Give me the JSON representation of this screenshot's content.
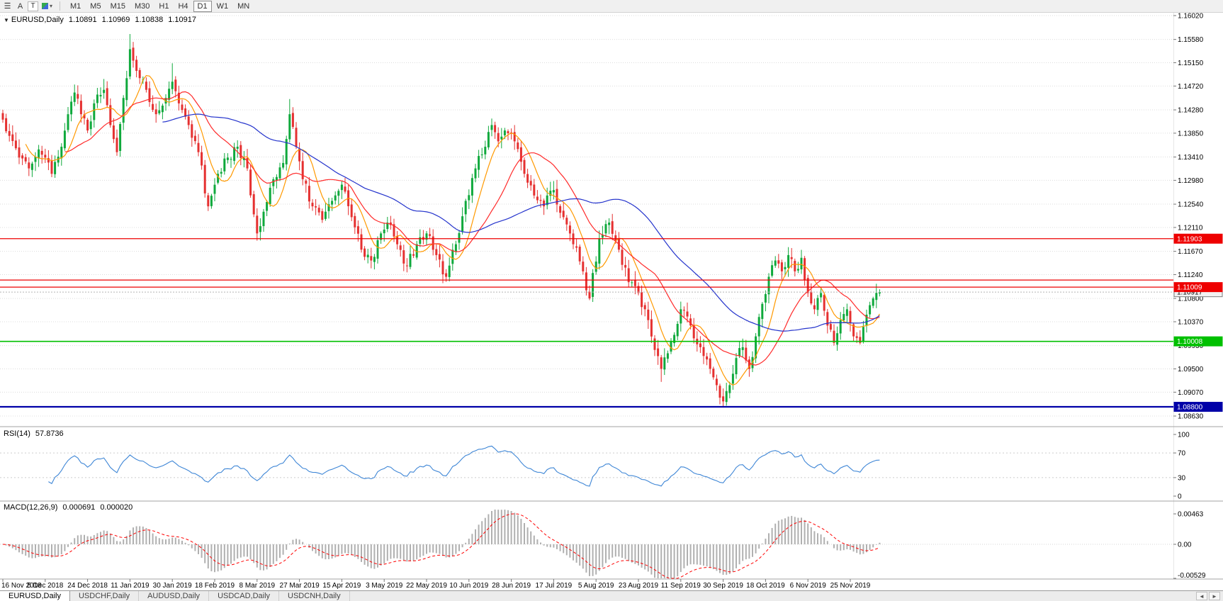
{
  "toolbar": {
    "tools": [
      {
        "name": "charts-list-icon",
        "glyph": "☰"
      },
      {
        "name": "arrow-tool-button",
        "glyph": "A"
      },
      {
        "name": "text-tool-button",
        "glyph": "T"
      },
      {
        "name": "indicators-button",
        "glyph": ""
      },
      {
        "name": "chevron-down-icon",
        "glyph": "▾"
      }
    ],
    "timeframes": [
      "M1",
      "M5",
      "M15",
      "M30",
      "H1",
      "H4",
      "D1",
      "W1",
      "MN"
    ],
    "active_timeframe": "D1"
  },
  "chart": {
    "symbol_label": "EURUSD,Daily",
    "collapse_icon": "▼",
    "ohlc": {
      "open": "1.10891",
      "high": "1.10969",
      "low": "1.10838",
      "close": "1.10917"
    },
    "price_axis_labels": [
      "1.16020",
      "1.15580",
      "1.15150",
      "1.14720",
      "1.14280",
      "1.13850",
      "1.13410",
      "1.12980",
      "1.12540",
      "1.12110",
      "1.11670",
      "1.11240",
      "1.10800",
      "1.10370",
      "1.09930",
      "1.09500",
      "1.09070",
      "1.08630"
    ],
    "date_axis_labels": [
      "16 Nov 2018",
      "5 Dec 2018",
      "24 Dec 2018",
      "11 Jan 2019",
      "30 Jan 2019",
      "18 Feb 2019",
      "8 Mar 2019",
      "27 Mar 2019",
      "15 Apr 2019",
      "3 May 2019",
      "22 May 2019",
      "10 Jun 2019",
      "28 Jun 2019",
      "17 Jul 2019",
      "5 Aug 2019",
      "23 Aug 2019",
      "11 Sep 2019",
      "30 Sep 2019",
      "18 Oct 2019",
      "6 Nov 2019",
      "25 Nov 2019"
    ]
  },
  "rsi": {
    "name": "RSI(14)",
    "value": "57.8736",
    "levels": [
      "100",
      "70",
      "30",
      "0"
    ],
    "line_color": "#3e86d6"
  },
  "macd": {
    "name": "MACD(12,26,9)",
    "value_main": "0.000691",
    "value_signal": "0.000020",
    "axis_labels": [
      "0.00463",
      "0.00",
      "-0.00529"
    ],
    "histogram_color": "#b0b0b0",
    "signal_color": "#ff0000"
  },
  "tabs": {
    "scroll_left_icon": "◄",
    "scroll_right_icon": "►",
    "items": [
      {
        "label": "EURUSD,Daily",
        "active": true
      },
      {
        "label": "USDCHF,Daily",
        "active": false
      },
      {
        "label": "AUDUSD,Daily",
        "active": false
      },
      {
        "label": "USDCAD,Daily",
        "active": false
      },
      {
        "label": "USDCNH,Daily",
        "active": false
      }
    ]
  },
  "chart_data": {
    "type": "candlestick",
    "symbol": "EURUSD",
    "timeframe": "Daily",
    "bar_count": 270,
    "price_range": {
      "top": 1.1602,
      "bottom": 1.0863
    },
    "current_price": 1.10917,
    "candle_up_color": "#0fa93c",
    "candle_down_color": "#e53030",
    "close_anchors": [
      [
        0,
        1.141
      ],
      [
        2,
        1.138
      ],
      [
        5,
        1.134
      ],
      [
        8,
        1.132
      ],
      [
        11,
        1.1355
      ],
      [
        13,
        1.134
      ],
      [
        15,
        1.131
      ],
      [
        18,
        1.136
      ],
      [
        20,
        1.142
      ],
      [
        22,
        1.146
      ],
      [
        24,
        1.142
      ],
      [
        26,
        1.139
      ],
      [
        28,
        1.144
      ],
      [
        31,
        1.1465
      ],
      [
        33,
        1.14
      ],
      [
        35,
        1.135
      ],
      [
        37,
        1.145
      ],
      [
        39,
        1.154
      ],
      [
        41,
        1.15
      ],
      [
        44,
        1.1465
      ],
      [
        47,
        1.142
      ],
      [
        50,
        1.145
      ],
      [
        52,
        1.148
      ],
      [
        54,
        1.144
      ],
      [
        57,
        1.14
      ],
      [
        60,
        1.135
      ],
      [
        63,
        1.125
      ],
      [
        66,
        1.131
      ],
      [
        69,
        1.134
      ],
      [
        72,
        1.136
      ],
      [
        75,
        1.132
      ],
      [
        78,
        1.12
      ],
      [
        80,
        1.124
      ],
      [
        83,
        1.13
      ],
      [
        86,
        1.133
      ],
      [
        88,
        1.142
      ],
      [
        90,
        1.136
      ],
      [
        92,
        1.13
      ],
      [
        95,
        1.125
      ],
      [
        98,
        1.1225
      ],
      [
        101,
        1.126
      ],
      [
        104,
        1.129
      ],
      [
        107,
        1.123
      ],
      [
        110,
        1.117
      ],
      [
        113,
        1.115
      ],
      [
        116,
        1.12
      ],
      [
        118,
        1.122
      ],
      [
        121,
        1.118
      ],
      [
        124,
        1.114
      ],
      [
        127,
        1.118
      ],
      [
        130,
        1.12
      ],
      [
        133,
        1.116
      ],
      [
        136,
        1.112
      ],
      [
        139,
        1.118
      ],
      [
        142,
        1.126
      ],
      [
        145,
        1.132
      ],
      [
        148,
        1.136
      ],
      [
        150,
        1.14
      ],
      [
        152,
        1.137
      ],
      [
        154,
        1.139
      ],
      [
        157,
        1.137
      ],
      [
        160,
        1.131
      ],
      [
        163,
        1.127
      ],
      [
        166,
        1.125
      ],
      [
        169,
        1.128
      ],
      [
        172,
        1.123
      ],
      [
        175,
        1.118
      ],
      [
        178,
        1.113
      ],
      [
        180,
        1.108
      ],
      [
        183,
        1.119
      ],
      [
        186,
        1.122
      ],
      [
        189,
        1.117
      ],
      [
        192,
        1.111
      ],
      [
        195,
        1.109
      ],
      [
        198,
        1.104
      ],
      [
        200,
        1.0985
      ],
      [
        202,
        1.095
      ],
      [
        205,
        1.1
      ],
      [
        208,
        1.106
      ],
      [
        211,
        1.103
      ],
      [
        214,
        1.099
      ],
      [
        217,
        1.095
      ],
      [
        219,
        1.092
      ],
      [
        221,
        1.089
      ],
      [
        223,
        1.092
      ],
      [
        225,
        1.097
      ],
      [
        227,
        1.099
      ],
      [
        229,
        1.095
      ],
      [
        231,
        1.101
      ],
      [
        233,
        1.107
      ],
      [
        235,
        1.112
      ],
      [
        237,
        1.115
      ],
      [
        239,
        1.113
      ],
      [
        241,
        1.116
      ],
      [
        243,
        1.113
      ],
      [
        245,
        1.1155
      ],
      [
        247,
        1.109
      ],
      [
        249,
        1.106
      ],
      [
        251,
        1.109
      ],
      [
        253,
        1.103
      ],
      [
        255,
        1.0998
      ],
      [
        257,
        1.104
      ],
      [
        259,
        1.106
      ],
      [
        261,
        1.101
      ],
      [
        263,
        1.0998
      ],
      [
        265,
        1.105
      ],
      [
        267,
        1.108
      ],
      [
        269,
        1.1092
      ]
    ],
    "overrides": [
      {
        "bar": 31,
        "high": 1.1485
      },
      {
        "bar": 39,
        "high": 1.1568
      },
      {
        "bar": 52,
        "high": 1.1514
      },
      {
        "bar": 88,
        "high": 1.1448
      },
      {
        "bar": 150,
        "high": 1.1412
      },
      {
        "bar": 202,
        "low": 1.0926
      },
      {
        "bar": 221,
        "low": 1.0879
      },
      {
        "bar": 255,
        "low": 1.0993
      },
      {
        "bar": 263,
        "low": 1.0995
      },
      {
        "bar": 269,
        "open": 1.10891,
        "high": 1.10969,
        "low": 1.10838,
        "close": 1.10917
      }
    ],
    "moving_averages": [
      {
        "period": 8,
        "color": "#ff9900"
      },
      {
        "period": 20,
        "color": "#ff2a2a"
      },
      {
        "period": 50,
        "color": "#2433cc"
      }
    ],
    "hlines": [
      {
        "price": 1.11903,
        "color": "#ee0000",
        "width": 1.3,
        "tag": "1.11903"
      },
      {
        "price": 1.1114,
        "color": "#ee0000",
        "width": 1.3,
        "tag": null
      },
      {
        "price": 1.11009,
        "color": "#ee0000",
        "width": 1.3,
        "tag": "1.11009"
      },
      {
        "price": 1.10008,
        "color": "#00c000",
        "width": 1.6,
        "tag": "1.10008"
      },
      {
        "price": 1.088,
        "color": "#0000a8",
        "width": 2.2,
        "tag": "1.08800"
      }
    ],
    "current_tag": {
      "bg": "#f2f2f2",
      "border": "#808080",
      "text": "#000000"
    },
    "rsi_period": 14,
    "macd_params": {
      "fast": 12,
      "slow": 26,
      "signal": 9
    }
  }
}
